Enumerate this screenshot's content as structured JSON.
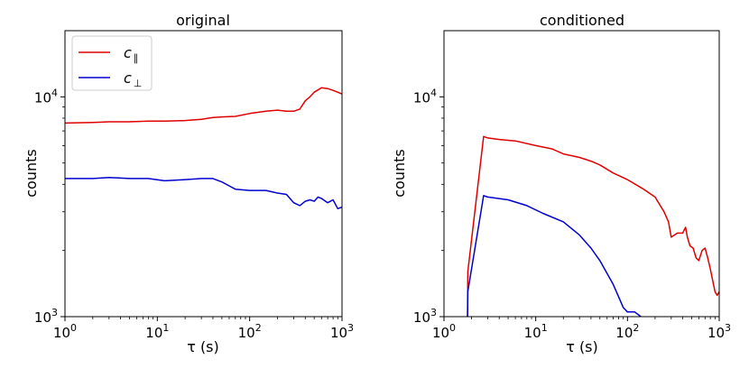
{
  "figure": {
    "background": "#ffffff"
  },
  "chart_data": [
    {
      "type": "line",
      "title": "original",
      "xlabel": "τ (s)",
      "ylabel": "counts",
      "xscale": "log",
      "yscale": "log",
      "xlim": [
        1,
        1000
      ],
      "ylim": [
        1000,
        20000
      ],
      "x_ticks": [
        {
          "value": 1,
          "base": "10",
          "exp": "0"
        },
        {
          "value": 10,
          "base": "10",
          "exp": "1"
        },
        {
          "value": 100,
          "base": "10",
          "exp": "2"
        },
        {
          "value": 1000,
          "base": "10",
          "exp": "3"
        }
      ],
      "y_ticks": [
        {
          "value": 1000,
          "base": "10",
          "exp": "3"
        },
        {
          "value": 10000,
          "base": "10",
          "exp": "4"
        }
      ],
      "grid": false,
      "legend": {
        "placement": "top-left",
        "entries": [
          {
            "symbol": "c",
            "subscript": "∥",
            "color": "#e00000"
          },
          {
            "symbol": "c",
            "subscript": "⊥",
            "color": "#0000d0"
          }
        ]
      },
      "series": [
        {
          "legend_index": 0,
          "color": "#e00000",
          "x": [
            1,
            2,
            3,
            5,
            8,
            12,
            20,
            30,
            40,
            50,
            70,
            100,
            150,
            200,
            250,
            300,
            350,
            400,
            450,
            500,
            600,
            700,
            800,
            900,
            1000
          ],
          "values": [
            7600,
            7650,
            7700,
            7700,
            7750,
            7750,
            7800,
            7900,
            8050,
            8100,
            8150,
            8400,
            8600,
            8700,
            8600,
            8600,
            8800,
            9600,
            10000,
            10500,
            11000,
            10900,
            10700,
            10500,
            10300
          ]
        },
        {
          "legend_index": 1,
          "color": "#0000d0",
          "x": [
            1,
            2,
            3,
            5,
            8,
            12,
            20,
            30,
            40,
            50,
            70,
            100,
            150,
            200,
            250,
            300,
            350,
            400,
            450,
            500,
            550,
            600,
            700,
            800,
            900,
            1000
          ],
          "values": [
            4250,
            4250,
            4300,
            4250,
            4250,
            4150,
            4200,
            4250,
            4250,
            4100,
            3800,
            3750,
            3750,
            3650,
            3600,
            3300,
            3200,
            3350,
            3400,
            3350,
            3500,
            3450,
            3300,
            3400,
            3100,
            3150
          ]
        }
      ]
    },
    {
      "type": "line",
      "title": "conditioned",
      "xlabel": "τ (s)",
      "ylabel": "counts",
      "xscale": "log",
      "yscale": "log",
      "xlim": [
        1,
        1000
      ],
      "ylim": [
        1000,
        20000
      ],
      "x_ticks": [
        {
          "value": 1,
          "base": "10",
          "exp": "0"
        },
        {
          "value": 10,
          "base": "10",
          "exp": "1"
        },
        {
          "value": 100,
          "base": "10",
          "exp": "2"
        },
        {
          "value": 1000,
          "base": "10",
          "exp": "3"
        }
      ],
      "y_ticks": [
        {
          "value": 1000,
          "base": "10",
          "exp": "3"
        },
        {
          "value": 10000,
          "base": "10",
          "exp": "4"
        }
      ],
      "grid": false,
      "series": [
        {
          "color": "#e00000",
          "x": [
            1.8,
            1.82,
            2.7,
            3,
            4,
            6,
            10,
            15,
            20,
            30,
            40,
            50,
            70,
            100,
            150,
            200,
            250,
            280,
            300,
            350,
            400,
            430,
            450,
            480,
            520,
            560,
            600,
            650,
            700,
            750,
            800,
            900,
            950,
            1000
          ],
          "values": [
            900,
            1600,
            6600,
            6500,
            6400,
            6300,
            6000,
            5800,
            5500,
            5300,
            5100,
            4900,
            4500,
            4200,
            3800,
            3500,
            3000,
            2700,
            2300,
            2400,
            2400,
            2550,
            2300,
            2100,
            2050,
            1850,
            1800,
            2000,
            2050,
            1850,
            1650,
            1300,
            1250,
            1300
          ]
        },
        {
          "color": "#0000d0",
          "x": [
            1.8,
            1.82,
            2.7,
            3,
            5,
            8,
            12,
            20,
            30,
            40,
            50,
            70,
            90,
            100,
            120,
            140,
            160
          ],
          "values": [
            900,
            1300,
            3550,
            3500,
            3400,
            3200,
            2950,
            2700,
            2350,
            2050,
            1800,
            1400,
            1100,
            1050,
            1050,
            1000,
            950
          ]
        }
      ]
    }
  ]
}
